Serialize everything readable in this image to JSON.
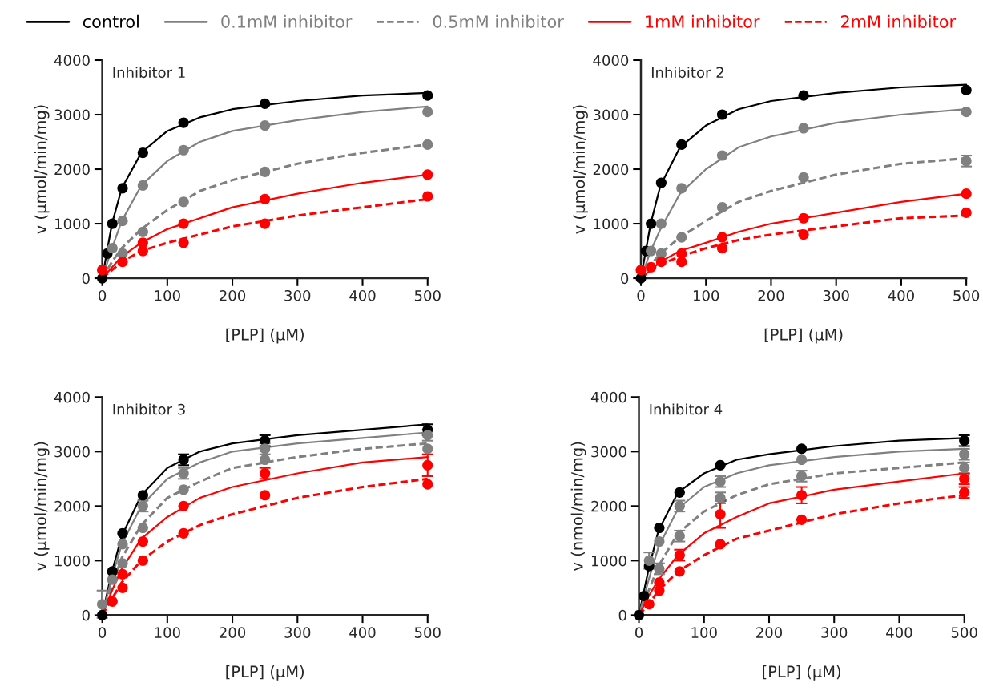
{
  "chart_data": [
    {
      "type": "scatter",
      "annotations": [
        "Inhibitor 1"
      ],
      "xlabel": "[PLP] (µM)",
      "ylabel": "v (µmol/min/mg)",
      "x": [
        0,
        7.8,
        15.6,
        31.25,
        62.5,
        125,
        250,
        500
      ],
      "xlim": [
        0,
        500
      ],
      "xticks": [
        0,
        100,
        200,
        300,
        400,
        500
      ],
      "ylim": [
        0,
        4000
      ],
      "yticks": [
        0,
        1000,
        2000,
        3000,
        4000
      ],
      "grid": false,
      "legend": "top",
      "series": [
        {
          "color": "#000000",
          "marker": "circle",
          "values": [
            0,
            450,
            1000,
            1650,
            2300,
            2850,
            3200,
            3350
          ]
        },
        {
          "color": "#808080",
          "marker": "circle",
          "values": [
            null,
            null,
            550,
            1050,
            1700,
            2350,
            2800,
            3050
          ]
        },
        {
          "color": "#808080",
          "marker": "circle",
          "values": [
            null,
            null,
            null,
            450,
            850,
            1400,
            1950,
            2450
          ]
        },
        {
          "color": "#ff0000",
          "marker": "circle",
          "values": [
            150,
            null,
            null,
            null,
            650,
            1000,
            1450,
            1900
          ]
        },
        {
          "color": "#ff0000",
          "marker": "circle",
          "values": [
            null,
            null,
            null,
            300,
            500,
            650,
            1000,
            1500
          ]
        },
        {
          "type": "line",
          "marker": "none",
          "name": "control",
          "color": "#000000",
          "line_style": "solid",
          "x": [
            0,
            15,
            30,
            60,
            100,
            150,
            200,
            300,
            400,
            500
          ],
          "values": [
            0,
            1000,
            1650,
            2300,
            2700,
            2950,
            3100,
            3250,
            3350,
            3400
          ]
        },
        {
          "type": "line",
          "marker": "none",
          "name": "0.1mM inhibitor",
          "color": "#808080",
          "line_style": "solid",
          "x": [
            0,
            15,
            30,
            60,
            100,
            150,
            200,
            300,
            400,
            500
          ],
          "values": [
            0,
            550,
            1050,
            1700,
            2150,
            2500,
            2700,
            2900,
            3050,
            3150
          ]
        },
        {
          "type": "line",
          "marker": "none",
          "name": "0.5mM inhibitor",
          "color": "#808080",
          "line_style": "dashed",
          "x": [
            0,
            15,
            30,
            60,
            100,
            150,
            200,
            300,
            400,
            500
          ],
          "values": [
            0,
            300,
            550,
            900,
            1250,
            1600,
            1800,
            2100,
            2300,
            2450
          ]
        },
        {
          "type": "line",
          "marker": "none",
          "name": "1mM inhibitor",
          "color": "#ff0000",
          "line_style": "solid",
          "x": [
            0,
            15,
            30,
            60,
            100,
            150,
            200,
            300,
            400,
            500
          ],
          "values": [
            0,
            200,
            400,
            650,
            900,
            1100,
            1300,
            1550,
            1750,
            1900
          ]
        },
        {
          "type": "line",
          "marker": "none",
          "name": "2mM inhibitor",
          "color": "#ff0000",
          "line_style": "dashed",
          "x": [
            0,
            15,
            30,
            60,
            100,
            150,
            200,
            300,
            400,
            500
          ],
          "values": [
            0,
            150,
            300,
            500,
            650,
            800,
            950,
            1150,
            1300,
            1450
          ]
        }
      ]
    },
    {
      "type": "scatter",
      "annotations": [
        "Inhibitor 2"
      ],
      "xlabel": "[PLP] (µM)",
      "ylabel": "v (µmol/min/mg)",
      "x": [
        0,
        7.8,
        15.6,
        31.25,
        62.5,
        125,
        250,
        500
      ],
      "xlim": [
        0,
        500
      ],
      "xticks": [
        0,
        100,
        200,
        300,
        400,
        500
      ],
      "ylim": [
        0,
        4000
      ],
      "yticks": [
        0,
        1000,
        2000,
        3000,
        4000
      ],
      "grid": false,
      "series": [
        {
          "color": "#000000",
          "marker": "circle",
          "values": [
            0,
            500,
            1000,
            1750,
            2450,
            3000,
            3350,
            3450
          ]
        },
        {
          "color": "#808080",
          "marker": "circle",
          "values": [
            null,
            null,
            500,
            1000,
            1650,
            2250,
            2750,
            3050
          ]
        },
        {
          "color": "#808080",
          "marker": "circle",
          "values": [
            null,
            null,
            null,
            450,
            750,
            1300,
            1850,
            2150
          ],
          "errors": [
            null,
            null,
            null,
            null,
            null,
            null,
            null,
            100
          ]
        },
        {
          "color": "#ff0000",
          "marker": "circle",
          "values": [
            150,
            null,
            null,
            300,
            450,
            750,
            1100,
            1550
          ]
        },
        {
          "color": "#ff0000",
          "marker": "circle",
          "values": [
            null,
            null,
            200,
            null,
            300,
            550,
            800,
            1200
          ]
        },
        {
          "type": "line",
          "marker": "none",
          "color": "#000000",
          "line_style": "solid",
          "x": [
            0,
            15,
            30,
            60,
            100,
            150,
            200,
            300,
            400,
            500
          ],
          "values": [
            0,
            1000,
            1700,
            2400,
            2800,
            3100,
            3250,
            3400,
            3500,
            3550
          ]
        },
        {
          "type": "line",
          "marker": "none",
          "color": "#808080",
          "line_style": "solid",
          "x": [
            0,
            15,
            30,
            60,
            100,
            150,
            200,
            300,
            400,
            500
          ],
          "values": [
            0,
            500,
            900,
            1550,
            2000,
            2400,
            2600,
            2850,
            3000,
            3100
          ]
        },
        {
          "type": "line",
          "marker": "none",
          "color": "#808080",
          "line_style": "dashed",
          "x": [
            0,
            15,
            30,
            60,
            100,
            150,
            200,
            300,
            400,
            500
          ],
          "values": [
            0,
            250,
            450,
            750,
            1050,
            1400,
            1600,
            1900,
            2100,
            2200
          ]
        },
        {
          "type": "line",
          "marker": "none",
          "color": "#ff0000",
          "line_style": "solid",
          "x": [
            0,
            15,
            30,
            60,
            100,
            150,
            200,
            300,
            400,
            500
          ],
          "values": [
            0,
            150,
            300,
            500,
            650,
            850,
            1000,
            1200,
            1400,
            1550
          ]
        },
        {
          "type": "line",
          "marker": "none",
          "color": "#ff0000",
          "line_style": "dashed",
          "x": [
            0,
            15,
            30,
            60,
            100,
            150,
            200,
            300,
            400,
            500
          ],
          "values": [
            0,
            150,
            250,
            400,
            550,
            700,
            800,
            950,
            1100,
            1150
          ]
        }
      ]
    },
    {
      "type": "scatter",
      "annotations": [
        "Inhibitor 3"
      ],
      "xlabel": "[PLP] (µM)",
      "ylabel": "v (µmol/min/mg)",
      "x": [
        0,
        7.8,
        15.6,
        31.25,
        62.5,
        125,
        250,
        500
      ],
      "xlim": [
        0,
        500
      ],
      "xticks": [
        0,
        100,
        200,
        300,
        400,
        500
      ],
      "ylim": [
        0,
        4000
      ],
      "yticks": [
        0,
        1000,
        2000,
        3000,
        4000
      ],
      "grid": false,
      "series": [
        {
          "color": "#000000",
          "marker": "circle",
          "values": [
            0,
            null,
            800,
            1500,
            2200,
            2850,
            3200,
            3400
          ],
          "errors": [
            null,
            null,
            null,
            null,
            null,
            100,
            100,
            100
          ]
        },
        {
          "color": "#808080",
          "marker": "circle",
          "values": [
            200,
            null,
            650,
            1300,
            2000,
            2600,
            3050,
            3300
          ],
          "errors": [
            250,
            null,
            null,
            null,
            100,
            100,
            100,
            100
          ]
        },
        {
          "color": "#808080",
          "marker": "circle",
          "values": [
            null,
            null,
            null,
            950,
            1600,
            2300,
            2850,
            3050
          ]
        },
        {
          "color": "#ff0000",
          "marker": "circle",
          "values": [
            null,
            null,
            null,
            750,
            1350,
            2000,
            2600,
            2750
          ],
          "errors": [
            null,
            null,
            null,
            null,
            null,
            null,
            100,
            200
          ]
        },
        {
          "color": "#ff0000",
          "marker": "circle",
          "values": [
            null,
            null,
            250,
            500,
            1000,
            1500,
            2200,
            2400
          ]
        },
        {
          "type": "line",
          "marker": "none",
          "color": "#000000",
          "line_style": "solid",
          "x": [
            0,
            15,
            30,
            60,
            100,
            150,
            200,
            300,
            400,
            500
          ],
          "values": [
            0,
            800,
            1450,
            2200,
            2700,
            3000,
            3150,
            3300,
            3400,
            3500
          ]
        },
        {
          "type": "line",
          "marker": "none",
          "color": "#808080",
          "line_style": "solid",
          "x": [
            0,
            15,
            30,
            60,
            100,
            150,
            200,
            300,
            400,
            500
          ],
          "values": [
            0,
            700,
            1300,
            2000,
            2500,
            2800,
            3000,
            3150,
            3250,
            3350
          ]
        },
        {
          "type": "line",
          "marker": "none",
          "color": "#808080",
          "line_style": "dashed",
          "x": [
            0,
            15,
            30,
            60,
            100,
            150,
            200,
            300,
            400,
            500
          ],
          "values": [
            0,
            550,
            1050,
            1650,
            2150,
            2450,
            2700,
            2900,
            3050,
            3150
          ]
        },
        {
          "type": "line",
          "marker": "none",
          "color": "#ff0000",
          "line_style": "solid",
          "x": [
            0,
            15,
            30,
            60,
            100,
            150,
            200,
            300,
            400,
            500
          ],
          "values": [
            0,
            450,
            850,
            1400,
            1800,
            2150,
            2350,
            2600,
            2800,
            2900
          ]
        },
        {
          "type": "line",
          "marker": "none",
          "color": "#ff0000",
          "line_style": "dashed",
          "x": [
            0,
            15,
            30,
            60,
            100,
            150,
            200,
            300,
            400,
            500
          ],
          "values": [
            0,
            300,
            600,
            1000,
            1350,
            1650,
            1850,
            2150,
            2350,
            2500
          ]
        }
      ]
    },
    {
      "type": "scatter",
      "annotations": [
        "Inhibitor 4"
      ],
      "xlabel": "[PLP] (µM)",
      "ylabel": "v (nmol/min/mg)",
      "x": [
        0,
        7.8,
        15.6,
        31.25,
        62.5,
        125,
        250,
        500
      ],
      "xlim": [
        0,
        500
      ],
      "xticks": [
        0,
        100,
        200,
        300,
        400,
        500
      ],
      "ylim": [
        0,
        4000
      ],
      "yticks": [
        0,
        1000,
        2000,
        3000,
        4000
      ],
      "grid": false,
      "series": [
        {
          "color": "#000000",
          "marker": "circle",
          "values": [
            0,
            350,
            900,
            1600,
            2250,
            2750,
            3050,
            3200
          ],
          "errors": [
            null,
            null,
            null,
            null,
            null,
            null,
            null,
            100
          ]
        },
        {
          "color": "#808080",
          "marker": "circle",
          "values": [
            null,
            null,
            1000,
            1350,
            2000,
            2450,
            2850,
            2950
          ],
          "errors": [
            null,
            null,
            150,
            null,
            100,
            100,
            null,
            100
          ]
        },
        {
          "color": "#808080",
          "marker": "circle",
          "values": [
            null,
            null,
            null,
            850,
            1450,
            2150,
            2550,
            2700
          ],
          "errors": [
            null,
            null,
            null,
            100,
            100,
            100,
            100,
            100
          ]
        },
        {
          "color": "#ff0000",
          "marker": "circle",
          "values": [
            null,
            null,
            null,
            600,
            1100,
            1850,
            2200,
            2500
          ],
          "errors": [
            null,
            null,
            null,
            null,
            100,
            250,
            150,
            100
          ]
        },
        {
          "color": "#ff0000",
          "marker": "circle",
          "values": [
            null,
            null,
            200,
            450,
            800,
            1300,
            1750,
            2250
          ],
          "errors": [
            null,
            null,
            null,
            null,
            null,
            null,
            null,
            100
          ]
        },
        {
          "type": "line",
          "marker": "none",
          "color": "#000000",
          "line_style": "solid",
          "x": [
            0,
            15,
            30,
            60,
            100,
            150,
            200,
            300,
            400,
            500
          ],
          "values": [
            0,
            850,
            1550,
            2250,
            2600,
            2850,
            2950,
            3100,
            3200,
            3250
          ]
        },
        {
          "type": "line",
          "marker": "none",
          "color": "#808080",
          "line_style": "solid",
          "x": [
            0,
            15,
            30,
            60,
            100,
            150,
            200,
            300,
            400,
            500
          ],
          "values": [
            0,
            650,
            1250,
            1950,
            2350,
            2600,
            2750,
            2900,
            3000,
            3050
          ]
        },
        {
          "type": "line",
          "marker": "none",
          "color": "#808080",
          "line_style": "dashed",
          "x": [
            0,
            15,
            30,
            60,
            100,
            150,
            200,
            300,
            400,
            500
          ],
          "values": [
            0,
            450,
            900,
            1500,
            1900,
            2200,
            2400,
            2600,
            2700,
            2800
          ]
        },
        {
          "type": "line",
          "marker": "none",
          "color": "#ff0000",
          "line_style": "solid",
          "x": [
            0,
            15,
            30,
            60,
            100,
            150,
            200,
            300,
            400,
            500
          ],
          "values": [
            0,
            350,
            650,
            1100,
            1500,
            1800,
            2050,
            2300,
            2450,
            2600
          ]
        },
        {
          "type": "line",
          "marker": "none",
          "color": "#ff0000",
          "line_style": "dashed",
          "x": [
            0,
            15,
            30,
            60,
            100,
            150,
            200,
            300,
            400,
            500
          ],
          "values": [
            0,
            200,
            450,
            800,
            1100,
            1400,
            1550,
            1850,
            2050,
            2200
          ]
        }
      ]
    }
  ]
}
